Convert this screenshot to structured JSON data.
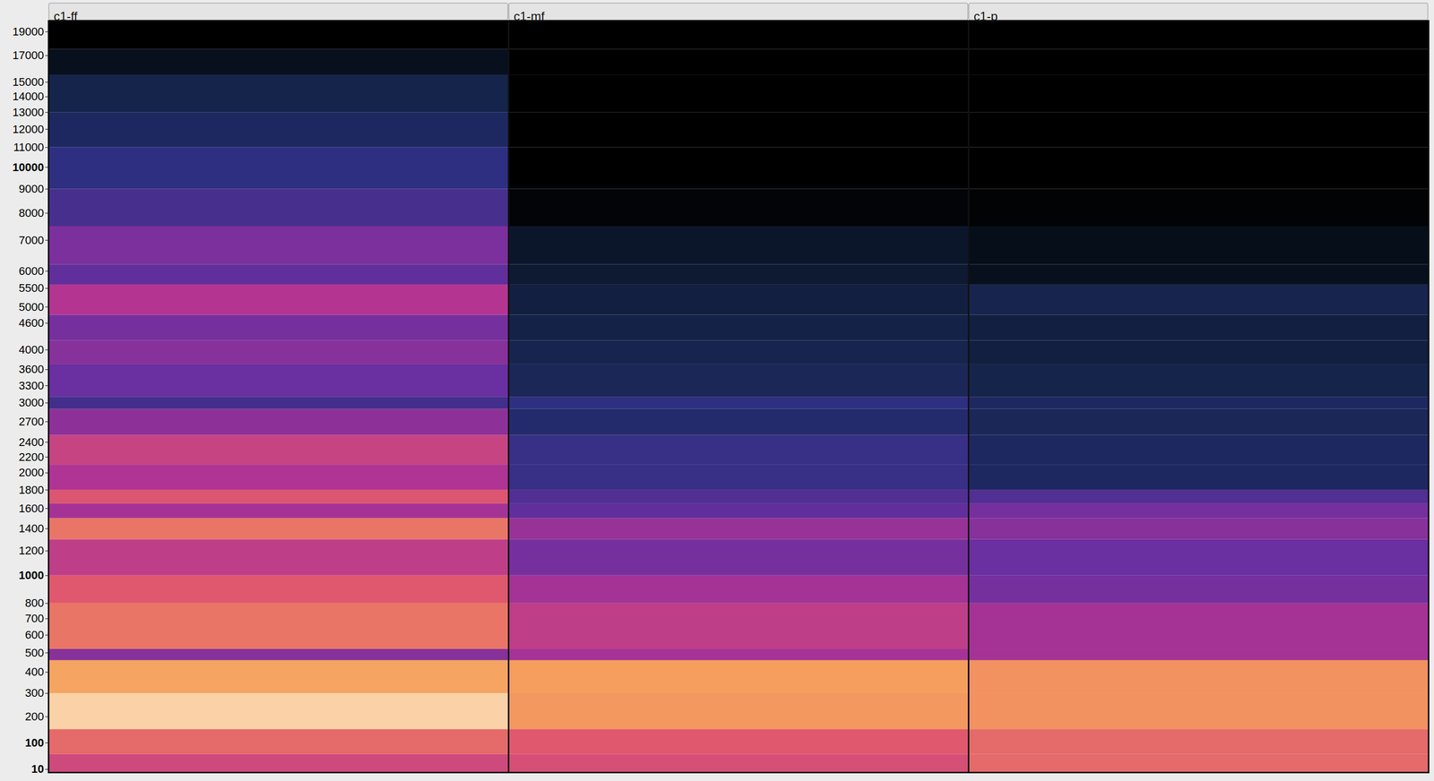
{
  "chart_data": {
    "type": "heatmap",
    "panels": [
      "c1-ff",
      "c1-mf",
      "c1-p"
    ],
    "y_edges": [
      0,
      60,
      150,
      300,
      460,
      520,
      800,
      1000,
      1300,
      1500,
      1650,
      1800,
      2100,
      2500,
      2900,
      3100,
      3700,
      4200,
      4800,
      5600,
      6200,
      7500,
      9000,
      11000,
      13000,
      15500,
      17500,
      20000
    ],
    "values": [
      [
        0.7,
        0.78,
        0.95,
        0.88,
        0.55,
        0.8,
        0.75,
        0.66,
        0.8,
        0.6,
        0.74,
        0.62,
        0.68,
        0.56,
        0.42,
        0.5,
        0.55,
        0.52,
        0.63,
        0.48,
        0.53,
        0.43,
        0.38,
        0.3,
        0.25,
        0.12,
        0
      ],
      [
        0.72,
        0.75,
        0.86,
        0.87,
        0.6,
        0.66,
        0.6,
        0.52,
        0.58,
        0.48,
        0.45,
        0.4,
        0.4,
        0.33,
        0.38,
        0.28,
        0.26,
        0.24,
        0.22,
        0.18,
        0.16,
        0.03,
        0,
        0,
        0,
        0,
        0
      ],
      [
        0.78,
        0.78,
        0.85,
        0.85,
        0.6,
        0.6,
        0.52,
        0.5,
        0.55,
        0.52,
        0.45,
        0.3,
        0.3,
        0.28,
        0.3,
        0.25,
        0.22,
        0.22,
        0.26,
        0.12,
        0.1,
        0.02,
        0,
        0,
        0,
        0,
        0
      ]
    ],
    "ylim": [
      0,
      20000
    ],
    "yticks": [
      19000,
      17000,
      15000,
      14000,
      13000,
      12000,
      11000,
      10000,
      9000,
      8000,
      7000,
      6000,
      5500,
      5000,
      4600,
      4000,
      3600,
      3300,
      3000,
      2700,
      2400,
      2200,
      2000,
      1800,
      1600,
      1400,
      1200,
      1000,
      800,
      700,
      600,
      500,
      400,
      300,
      200,
      100,
      10
    ],
    "zlim": [
      0,
      1
    ],
    "tick_labels": "y"
  }
}
